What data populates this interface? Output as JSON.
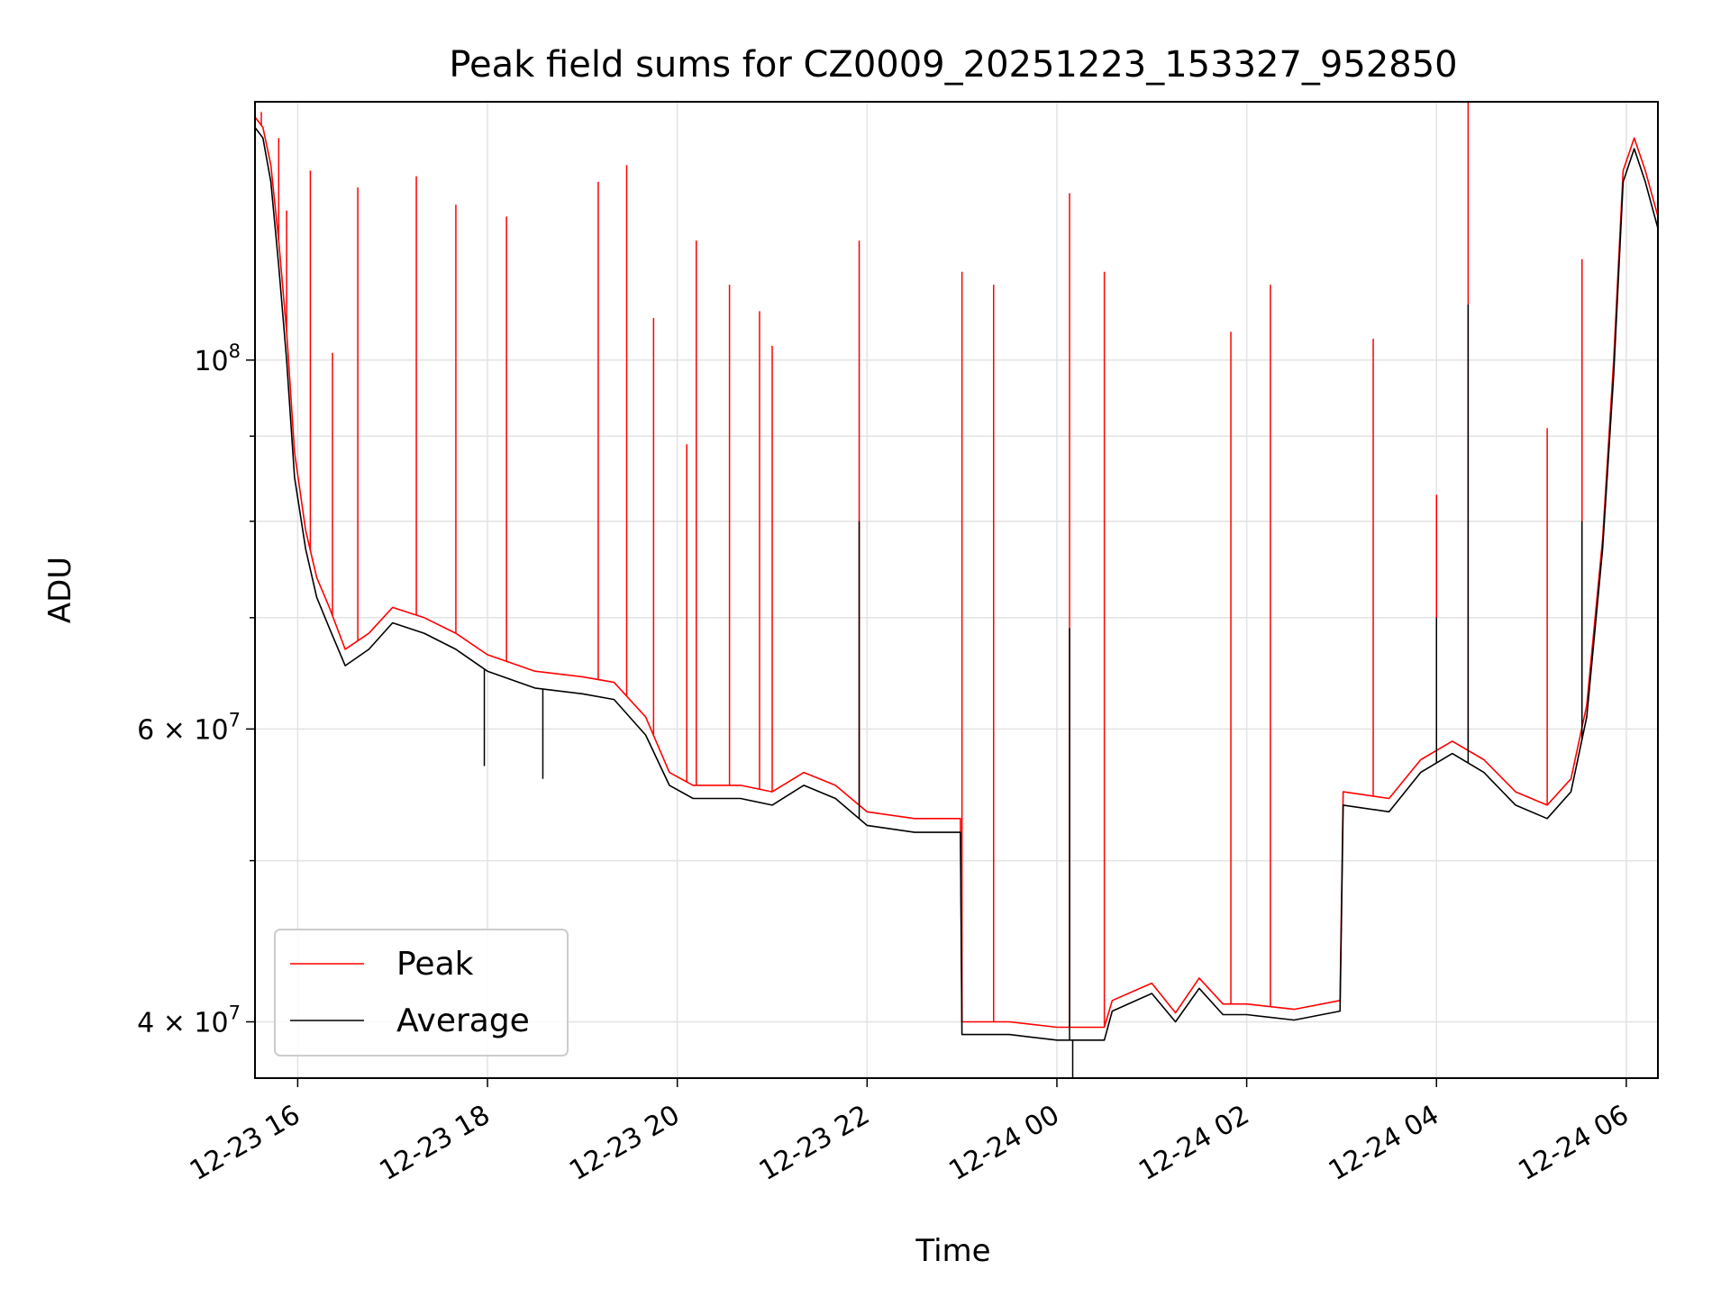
{
  "chart_data": {
    "type": "line",
    "title": "Peak field sums for CZ0009_20251223_153327_952850",
    "xlabel": "Time",
    "ylabel": "ADU",
    "y_scale": "log",
    "ylim": [
      37000000,
      143000000
    ],
    "xlim": [
      "2025-12-23 15:33",
      "2025-12-24 06:20"
    ],
    "grid": true,
    "legend_placement": "lower-left",
    "x_ticks": [
      {
        "t": "2025-12-23 16:00",
        "label": "12-23 16"
      },
      {
        "t": "2025-12-23 18:00",
        "label": "12-23 18"
      },
      {
        "t": "2025-12-23 20:00",
        "label": "12-23 20"
      },
      {
        "t": "2025-12-23 22:00",
        "label": "12-23 22"
      },
      {
        "t": "2025-12-24 00:00",
        "label": "12-24 00"
      },
      {
        "t": "2025-12-24 02:00",
        "label": "12-24 02"
      },
      {
        "t": "2025-12-24 04:00",
        "label": "12-24 04"
      },
      {
        "t": "2025-12-24 06:00",
        "label": "12-24 06"
      }
    ],
    "y_major_ticks": [
      {
        "value": 40000000,
        "label": "4 × 10",
        "exp": "7"
      },
      {
        "value": 60000000,
        "label": "6 × 10",
        "exp": "7"
      },
      {
        "value": 100000000,
        "label": "10",
        "exp": "8"
      }
    ],
    "y_minor_ticks": [
      50000000,
      70000000,
      80000000,
      90000000
    ],
    "series": [
      {
        "name": "Peak",
        "color": "#ff0000",
        "points": [
          [
            "2025-12-23 15:33",
            140000000
          ],
          [
            "2025-12-23 15:38",
            138000000
          ],
          [
            "2025-12-23 15:43",
            131000000
          ],
          [
            "2025-12-23 15:48",
            118000000
          ],
          [
            "2025-12-23 15:53",
            104000000
          ],
          [
            "2025-12-23 15:58",
            88000000
          ],
          [
            "2025-12-23 16:05",
            79000000
          ],
          [
            "2025-12-23 16:12",
            74000000
          ],
          [
            "2025-12-23 16:20",
            71000000
          ],
          [
            "2025-12-23 16:30",
            67000000
          ],
          [
            "2025-12-23 16:45",
            68500000
          ],
          [
            "2025-12-23 17:00",
            71000000
          ],
          [
            "2025-12-23 17:20",
            70000000
          ],
          [
            "2025-12-23 17:40",
            68500000
          ],
          [
            "2025-12-23 18:00",
            66500000
          ],
          [
            "2025-12-23 18:30",
            65000000
          ],
          [
            "2025-12-23 19:00",
            64500000
          ],
          [
            "2025-12-23 19:20",
            64000000
          ],
          [
            "2025-12-23 19:40",
            61000000
          ],
          [
            "2025-12-23 19:55",
            56500000
          ],
          [
            "2025-12-23 20:10",
            55500000
          ],
          [
            "2025-12-23 20:40",
            55500000
          ],
          [
            "2025-12-23 21:00",
            55000000
          ],
          [
            "2025-12-23 21:20",
            56500000
          ],
          [
            "2025-12-23 21:40",
            55500000
          ],
          [
            "2025-12-23 22:00",
            53500000
          ],
          [
            "2025-12-23 22:30",
            53000000
          ],
          [
            "2025-12-23 22:59",
            53000000
          ],
          [
            "2025-12-23 23:00",
            40000000
          ],
          [
            "2025-12-23 23:30",
            40000000
          ],
          [
            "2025-12-24 00:00",
            39700000
          ],
          [
            "2025-12-24 00:30",
            39700000
          ],
          [
            "2025-12-24 00:35",
            41200000
          ],
          [
            "2025-12-24 01:00",
            42200000
          ],
          [
            "2025-12-24 01:15",
            40500000
          ],
          [
            "2025-12-24 01:30",
            42500000
          ],
          [
            "2025-12-24 01:45",
            41000000
          ],
          [
            "2025-12-24 02:00",
            41000000
          ],
          [
            "2025-12-24 02:30",
            40700000
          ],
          [
            "2025-12-24 02:59",
            41200000
          ],
          [
            "2025-12-24 03:01",
            55000000
          ],
          [
            "2025-12-24 03:30",
            54500000
          ],
          [
            "2025-12-24 03:50",
            57500000
          ],
          [
            "2025-12-24 04:10",
            59000000
          ],
          [
            "2025-12-24 04:30",
            57500000
          ],
          [
            "2025-12-24 04:50",
            55000000
          ],
          [
            "2025-12-24 05:10",
            54000000
          ],
          [
            "2025-12-24 05:25",
            56000000
          ],
          [
            "2025-12-24 05:35",
            62000000
          ],
          [
            "2025-12-24 05:45",
            78000000
          ],
          [
            "2025-12-24 05:52",
            100000000
          ],
          [
            "2025-12-24 05:58",
            130000000
          ],
          [
            "2025-12-24 06:05",
            136000000
          ],
          [
            "2025-12-24 06:12",
            130000000
          ],
          [
            "2025-12-24 06:20",
            122000000
          ]
        ],
        "spikes": [
          [
            "2025-12-23 15:37",
            141000000
          ],
          [
            "2025-12-23 15:48",
            136000000
          ],
          [
            "2025-12-23 15:53",
            123000000
          ],
          [
            "2025-12-23 16:08",
            130000000
          ],
          [
            "2025-12-23 16:22",
            101000000
          ],
          [
            "2025-12-23 16:38",
            127000000
          ],
          [
            "2025-12-23 17:15",
            129000000
          ],
          [
            "2025-12-23 17:40",
            124000000
          ],
          [
            "2025-12-23 18:12",
            122000000
          ],
          [
            "2025-12-23 19:10",
            128000000
          ],
          [
            "2025-12-23 19:28",
            131000000
          ],
          [
            "2025-12-23 19:45",
            106000000
          ],
          [
            "2025-12-23 20:06",
            89000000
          ],
          [
            "2025-12-23 20:12",
            118000000
          ],
          [
            "2025-12-23 20:33",
            111000000
          ],
          [
            "2025-12-23 20:52",
            107000000
          ],
          [
            "2025-12-23 21:00",
            102000000
          ],
          [
            "2025-12-23 21:55",
            118000000
          ],
          [
            "2025-12-23 23:00",
            113000000
          ],
          [
            "2025-12-23 23:20",
            111000000
          ],
          [
            "2025-12-24 00:08",
            126000000
          ],
          [
            "2025-12-24 00:30",
            113000000
          ],
          [
            "2025-12-24 01:50",
            104000000
          ],
          [
            "2025-12-24 02:15",
            111000000
          ],
          [
            "2025-12-24 03:20",
            103000000
          ],
          [
            "2025-12-24 04:00",
            83000000
          ],
          [
            "2025-12-24 04:20",
            143000000
          ],
          [
            "2025-12-24 05:10",
            91000000
          ],
          [
            "2025-12-24 05:32",
            115000000
          ]
        ]
      },
      {
        "name": "Average",
        "color": "#000000",
        "points": [
          [
            "2025-12-23 15:33",
            138000000
          ],
          [
            "2025-12-23 15:38",
            136000000
          ],
          [
            "2025-12-23 15:43",
            128000000
          ],
          [
            "2025-12-23 15:48",
            114000000
          ],
          [
            "2025-12-23 15:53",
            100000000
          ],
          [
            "2025-12-23 15:58",
            85000000
          ],
          [
            "2025-12-23 16:05",
            77000000
          ],
          [
            "2025-12-23 16:12",
            72000000
          ],
          [
            "2025-12-23 16:20",
            69000000
          ],
          [
            "2025-12-23 16:30",
            65500000
          ],
          [
            "2025-12-23 16:45",
            67000000
          ],
          [
            "2025-12-23 17:00",
            69500000
          ],
          [
            "2025-12-23 17:20",
            68500000
          ],
          [
            "2025-12-23 17:40",
            67000000
          ],
          [
            "2025-12-23 18:00",
            65000000
          ],
          [
            "2025-12-23 18:30",
            63500000
          ],
          [
            "2025-12-23 19:00",
            63000000
          ],
          [
            "2025-12-23 19:20",
            62500000
          ],
          [
            "2025-12-23 19:40",
            59500000
          ],
          [
            "2025-12-23 19:55",
            55500000
          ],
          [
            "2025-12-23 20:10",
            54500000
          ],
          [
            "2025-12-23 20:40",
            54500000
          ],
          [
            "2025-12-23 21:00",
            54000000
          ],
          [
            "2025-12-23 21:20",
            55500000
          ],
          [
            "2025-12-23 21:40",
            54500000
          ],
          [
            "2025-12-23 22:00",
            52500000
          ],
          [
            "2025-12-23 22:30",
            52000000
          ],
          [
            "2025-12-23 22:59",
            52000000
          ],
          [
            "2025-12-23 23:00",
            39300000
          ],
          [
            "2025-12-23 23:30",
            39300000
          ],
          [
            "2025-12-24 00:00",
            39000000
          ],
          [
            "2025-12-24 00:30",
            39000000
          ],
          [
            "2025-12-24 00:35",
            40600000
          ],
          [
            "2025-12-24 01:00",
            41600000
          ],
          [
            "2025-12-24 01:15",
            40000000
          ],
          [
            "2025-12-24 01:30",
            41900000
          ],
          [
            "2025-12-24 01:45",
            40400000
          ],
          [
            "2025-12-24 02:00",
            40400000
          ],
          [
            "2025-12-24 02:30",
            40100000
          ],
          [
            "2025-12-24 02:59",
            40600000
          ],
          [
            "2025-12-24 03:01",
            54000000
          ],
          [
            "2025-12-24 03:30",
            53500000
          ],
          [
            "2025-12-24 03:50",
            56500000
          ],
          [
            "2025-12-24 04:10",
            58000000
          ],
          [
            "2025-12-24 04:30",
            56500000
          ],
          [
            "2025-12-24 04:50",
            54000000
          ],
          [
            "2025-12-24 05:10",
            53000000
          ],
          [
            "2025-12-24 05:25",
            55000000
          ],
          [
            "2025-12-24 05:35",
            61000000
          ],
          [
            "2025-12-24 05:45",
            77000000
          ],
          [
            "2025-12-24 05:52",
            98000000
          ],
          [
            "2025-12-24 05:58",
            128000000
          ],
          [
            "2025-12-24 06:05",
            134000000
          ],
          [
            "2025-12-24 06:12",
            128000000
          ],
          [
            "2025-12-24 06:20",
            120000000
          ]
        ],
        "spikes": [
          [
            "2025-12-23 21:55",
            80000000
          ],
          [
            "2025-12-24 00:08",
            69000000
          ],
          [
            "2025-12-24 04:20",
            108000000
          ],
          [
            "2025-12-24 05:32",
            80000000
          ],
          [
            "2025-12-24 04:00",
            70000000
          ],
          [
            "2025-12-23 17:58",
            57000000
          ],
          [
            "2025-12-23 18:35",
            56000000
          ],
          [
            "2025-12-24 00:10",
            37000000
          ]
        ]
      }
    ]
  }
}
